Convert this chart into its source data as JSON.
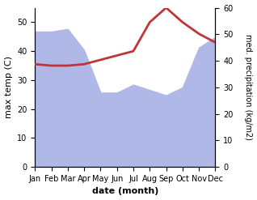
{
  "months": [
    "Jan",
    "Feb",
    "Mar",
    "Apr",
    "May",
    "Jun",
    "Jul",
    "Aug",
    "Sep",
    "Oct",
    "Nov",
    "Dec"
  ],
  "precipitation": [
    51,
    51,
    52,
    44,
    28,
    28,
    31,
    29,
    27,
    30,
    45,
    49
  ],
  "temperature": [
    35.5,
    35,
    35,
    35.5,
    37,
    38.5,
    40,
    50,
    55,
    50,
    46,
    43
  ],
  "precip_color": "#b0b8e8",
  "temp_color": "#c03535",
  "ylabel_left": "max temp (C)",
  "ylabel_right": "med. precipitation (kg/m2)",
  "xlabel": "date (month)",
  "ylim_left": [
    0,
    55
  ],
  "ylim_right": [
    0,
    60
  ],
  "yticks_left": [
    0,
    10,
    20,
    30,
    40,
    50
  ],
  "yticks_right": [
    0,
    10,
    20,
    30,
    40,
    50,
    60
  ],
  "bg_color": "#ffffff"
}
